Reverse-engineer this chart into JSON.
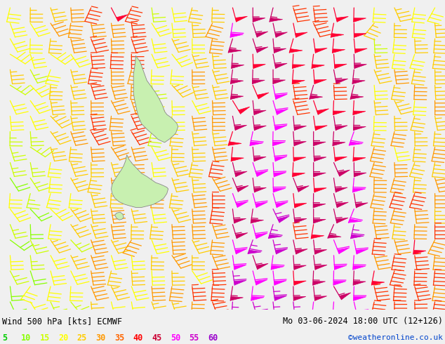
{
  "title_left": "Wind 500 hPa [kts] ECMWF",
  "title_right": "Mo 03-06-2024 18:00 UTC (12+126)",
  "credit": "©weatheronline.co.uk",
  "background_color": "#f0f0f0",
  "fig_width": 6.34,
  "fig_height": 4.9,
  "dpi": 100,
  "legend_values": [
    5,
    10,
    15,
    20,
    25,
    30,
    35,
    40,
    45,
    50,
    55,
    60
  ],
  "legend_colors": [
    "#00cc00",
    "#88ff00",
    "#ccff00",
    "#ffff00",
    "#ffcc00",
    "#ff9900",
    "#ff6600",
    "#ff0000",
    "#cc0033",
    "#ff00ff",
    "#cc00cc",
    "#9900cc"
  ]
}
